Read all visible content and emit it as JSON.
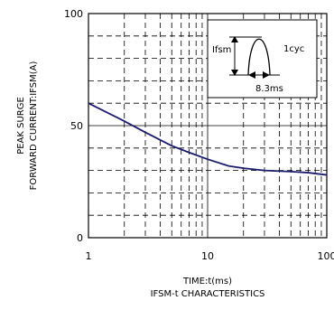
{
  "chart_data": {
    "type": "line",
    "title": "IFSM-t CHARACTERISTICS",
    "xlabel": "TIME:t(ms)",
    "ylabel_lines": [
      "PEAK SURGE",
      "FORWARD CURRENT:IFSM(A)"
    ],
    "xscale": "log",
    "xlim": [
      1,
      100
    ],
    "ylim": [
      0,
      100
    ],
    "x_ticks": [
      1,
      10,
      100
    ],
    "y_ticks": [
      0,
      50,
      100
    ],
    "x_tick_labels": [
      "1",
      "10",
      "100"
    ],
    "y_tick_labels": [
      "0",
      "50",
      "100"
    ],
    "grid": true,
    "series": [
      {
        "color": "#1a1a6e",
        "x": [
          1,
          2,
          3,
          5,
          7,
          10,
          15,
          20,
          30,
          50,
          70,
          100
        ],
        "y": [
          60,
          52,
          47,
          41,
          38,
          35,
          32,
          31,
          30,
          29.5,
          29,
          28
        ]
      }
    ],
    "inset": {
      "label_ifsm": "Ifsm",
      "label_cycle": "1cyc",
      "label_duration": "8.3ms"
    }
  }
}
